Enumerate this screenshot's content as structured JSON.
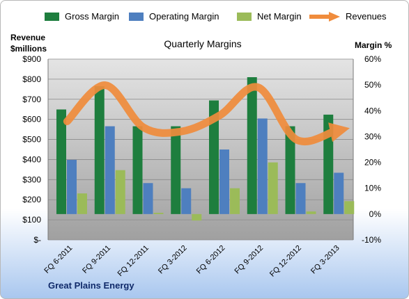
{
  "chart_data": {
    "type": "bar",
    "title": "Quarterly Margins",
    "categories": [
      "FQ 6-2011",
      "FQ 9-2011",
      "FQ 12-2011",
      "FQ 3-2012",
      "FQ 6-2012",
      "FQ 9-2012",
      "FQ 12-2012",
      "FQ 3-2013"
    ],
    "series": [
      {
        "name": "Gross Margin",
        "axis": "right",
        "color": "#1e7e3e",
        "values": [
          40.5,
          49.5,
          34,
          34,
          44,
          53,
          34,
          38.5
        ]
      },
      {
        "name": "Operating Margin",
        "axis": "right",
        "color": "#4e7fbf",
        "values": [
          21,
          34,
          12,
          10,
          25,
          37,
          12,
          16
        ]
      },
      {
        "name": "Net Margin",
        "axis": "right",
        "color": "#9bbb59",
        "values": [
          8,
          17,
          0.5,
          -2.5,
          10,
          20,
          1,
          5
        ]
      },
      {
        "name": "Revenues",
        "axis": "left",
        "type": "line",
        "color": "#f08c3c",
        "values": [
          590,
          770,
          560,
          540,
          620,
          760,
          500,
          540
        ]
      }
    ],
    "y_left": {
      "title_line1": "Revenue",
      "title_line2": "$millions",
      "ylim": [
        0,
        900
      ],
      "ticks": [
        "$900",
        "$800",
        "$700",
        "$600",
        "$500",
        "$400",
        "$300",
        "$200",
        "$100",
        "$-"
      ]
    },
    "y_right": {
      "title": "Margin %",
      "ylim": [
        -10,
        60
      ],
      "ticks": [
        "60%",
        "50%",
        "40%",
        "30%",
        "20%",
        "10%",
        "0%",
        "-10%"
      ]
    },
    "grid": true,
    "legend_position": "top"
  },
  "company": "Great Plains Energy"
}
